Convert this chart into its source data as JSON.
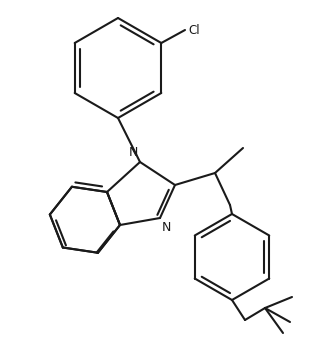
{
  "background_color": "#ffffff",
  "line_color": "#1a1a1a",
  "line_width": 1.5,
  "font_size": 8.5,
  "label_N": "N",
  "label_Cl": "Cl",
  "figsize": [
    3.2,
    3.5
  ],
  "dpi": 100
}
